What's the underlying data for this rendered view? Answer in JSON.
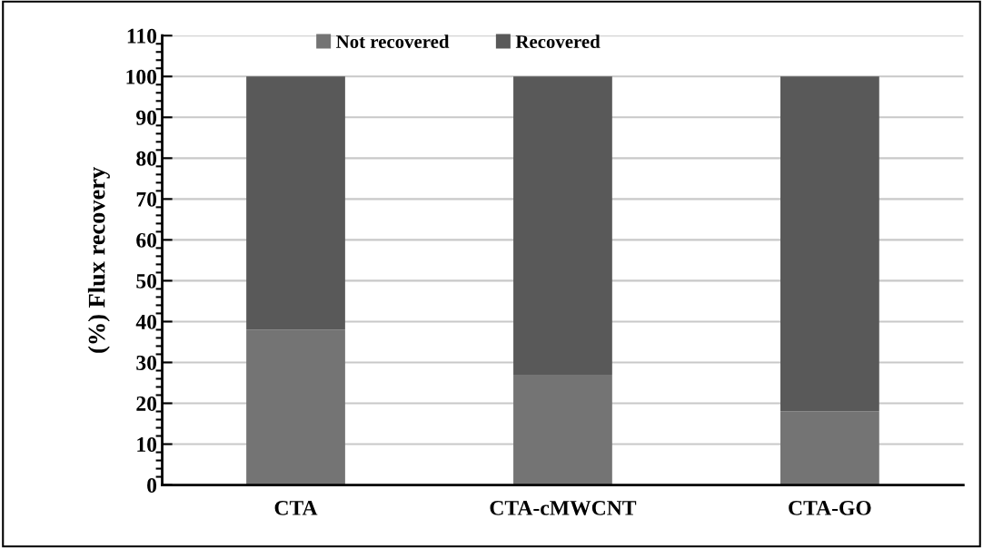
{
  "chart_data": {
    "type": "bar",
    "stacked": true,
    "ylabel": "(%) Flux recovery",
    "categories": [
      "CTA",
      "CTA-cMWCNT",
      "CTA-GO"
    ],
    "series": [
      {
        "name": "Not recovered",
        "color": "#747474",
        "values": [
          38,
          27,
          18
        ]
      },
      {
        "name": "Recovered",
        "color": "#595959",
        "values": [
          62,
          73,
          82
        ]
      }
    ],
    "ylim": [
      0,
      110
    ],
    "yticks": [
      0,
      {
        "value": 2,
        "label": null
      },
      {
        "value": 4,
        "label": null
      },
      {
        "value": 6,
        "label": null
      },
      {
        "value": 8,
        "label": null
      },
      10,
      {
        "value": 12,
        "label": null
      },
      {
        "value": 14,
        "label": null
      },
      {
        "value": 16,
        "label": null
      },
      {
        "value": 18,
        "label": null
      },
      20,
      {
        "value": 22,
        "label": null
      },
      {
        "value": 24,
        "label": null
      },
      {
        "value": 26,
        "label": null
      },
      {
        "value": 28,
        "label": null
      },
      30,
      {
        "value": 32,
        "label": null
      },
      {
        "value": 34,
        "label": null
      },
      {
        "value": 36,
        "label": null
      },
      {
        "value": 38,
        "label": null
      },
      40,
      {
        "value": 42,
        "label": null
      },
      {
        "value": 44,
        "label": null
      },
      {
        "value": 46,
        "label": null
      },
      {
        "value": 48,
        "label": null
      },
      50,
      {
        "value": 52,
        "label": null
      },
      {
        "value": 54,
        "label": null
      },
      {
        "value": 56,
        "label": null
      },
      {
        "value": 58,
        "label": null
      },
      60,
      {
        "value": 62,
        "label": null
      },
      {
        "value": 64,
        "label": null
      },
      {
        "value": 66,
        "label": null
      },
      {
        "value": 68,
        "label": null
      },
      70,
      {
        "value": 72,
        "label": null
      },
      {
        "value": 74,
        "label": null
      },
      {
        "value": 76,
        "label": null
      },
      {
        "value": 78,
        "label": null
      },
      80,
      {
        "value": 82,
        "label": null
      },
      {
        "value": 84,
        "label": null
      },
      {
        "value": 86,
        "label": null
      },
      {
        "value": 88,
        "label": null
      },
      90,
      {
        "value": 92,
        "label": null
      },
      {
        "value": 94,
        "label": null
      },
      {
        "value": 96,
        "label": null
      },
      {
        "value": 98,
        "label": null
      },
      100,
      {
        "value": 102,
        "label": null
      },
      {
        "value": 104,
        "label": null
      },
      {
        "value": 106,
        "label": null
      },
      {
        "value": 108,
        "label": null
      },
      110
    ],
    "grid": "y",
    "legend": "top"
  }
}
